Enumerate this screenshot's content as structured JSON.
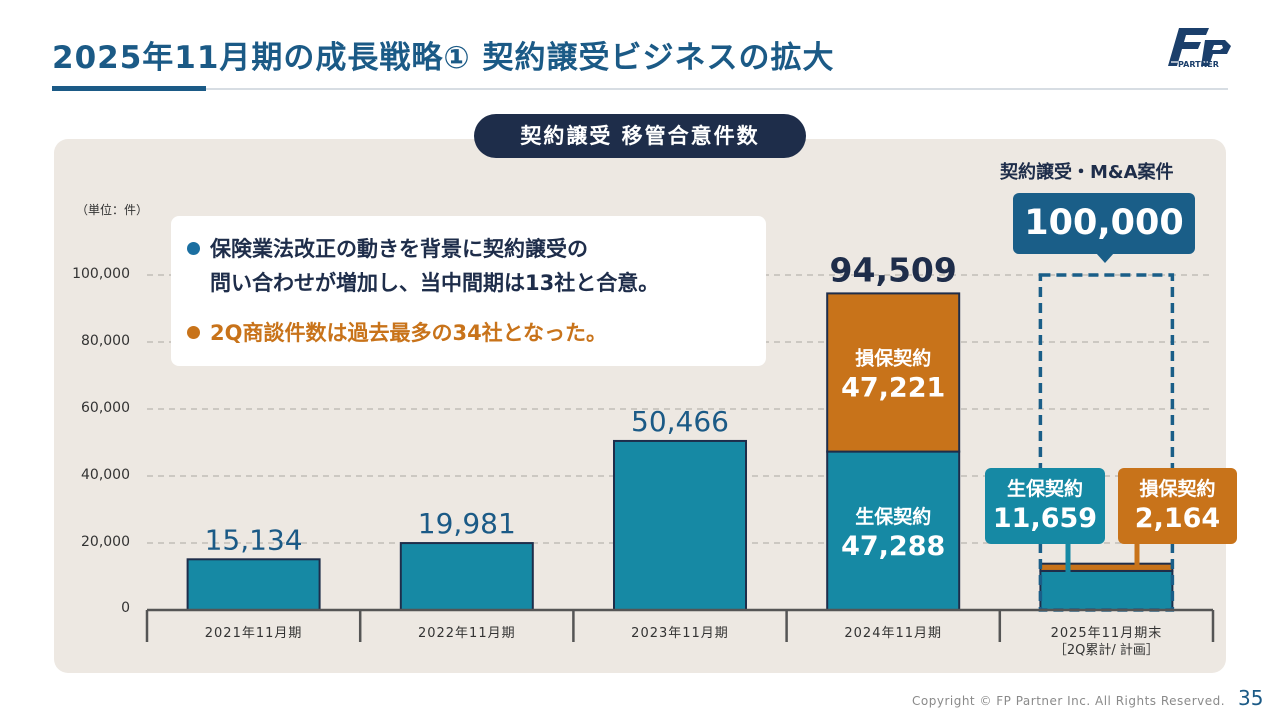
{
  "title": "2025年11月期の成長戦略① 契約譲受ビジネスの拡大",
  "logo": {
    "text": "PARTNER"
  },
  "pill_label": "契約譲受 移管合意件数",
  "unit_label": "（単位：件）",
  "bullets": {
    "line1a": "保険業法改正の動きを背景に契約譲受の",
    "line1b": "問い合わせが増加し、当中間期は13社と合意。",
    "line2": "2Q商談件数は過去最多の34社となった。"
  },
  "ma": {
    "label": "契約譲受・M&A案件",
    "value": "100,000"
  },
  "colors": {
    "teal": "#1689a4",
    "orange": "#c8731a",
    "navy": "#1e2d4a",
    "dashed": "#1a5e88",
    "panel": "#ede8e2"
  },
  "chart_data": {
    "type": "bar",
    "categories": [
      "2021年11月期",
      "2022年11月期",
      "2023年11月期",
      "2024年11月期",
      "2025年11月期末"
    ],
    "category_sublabels": [
      "",
      "",
      "",
      "",
      "［2Q累計/ 計画］"
    ],
    "series": [
      {
        "name": "生保契約",
        "values": [
          15134,
          19981,
          50466,
          47288,
          11659
        ]
      },
      {
        "name": "損保契約",
        "values": [
          0,
          0,
          0,
          47221,
          2164
        ]
      }
    ],
    "totals": [
      "15,134",
      "19,981",
      "50,466",
      "94,509",
      ""
    ],
    "segment_labels": [
      {
        "category_index": 3,
        "series": "損保契約",
        "label": "損保契約",
        "value": "47,221"
      },
      {
        "category_index": 3,
        "series": "生保契約",
        "label": "生保契約",
        "value": "47,288"
      }
    ],
    "callouts": [
      {
        "label": "生保契約",
        "value": "11,659"
      },
      {
        "label": "損保契約",
        "value": "2,164"
      }
    ],
    "plan_target": 100000,
    "yticks": [
      "0",
      "20,000",
      "40,000",
      "60,000",
      "80,000",
      "100,000"
    ],
    "ylim": [
      0,
      100000
    ],
    "grid": true
  },
  "footer": {
    "copyright": "Copyright © FP Partner Inc. All Rights Reserved.",
    "page": "35"
  }
}
